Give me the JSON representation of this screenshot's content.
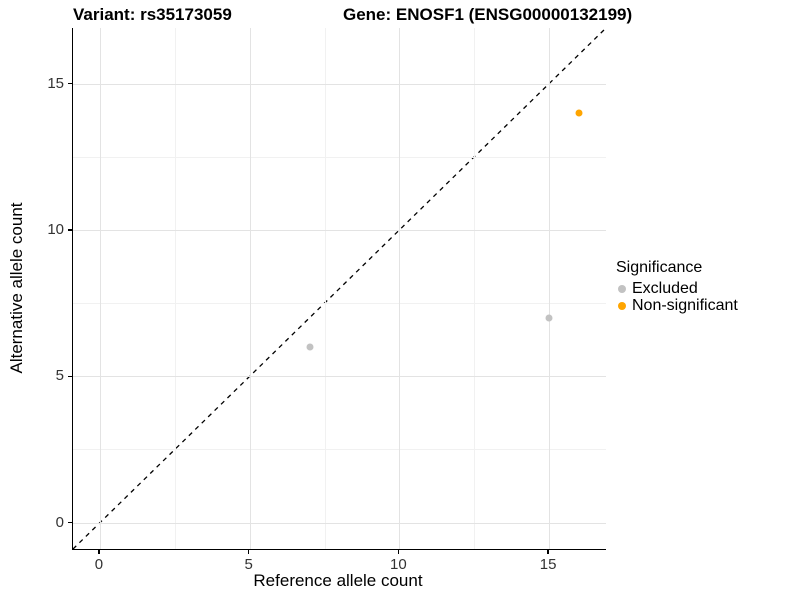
{
  "chart_data": {
    "type": "scatter",
    "titles": {
      "variant": "Variant: rs35173059",
      "gene": "Gene: ENOSF1 (ENSG00000132199)"
    },
    "xlabel": "Reference allele count",
    "ylabel": "Alternative allele count",
    "xlim": [
      -0.9,
      16.9
    ],
    "ylim": [
      -0.9,
      16.9
    ],
    "xticks": [
      0,
      5,
      10,
      15
    ],
    "yticks": [
      0,
      5,
      10,
      15
    ],
    "minor_xticks": [
      2.5,
      7.5,
      12.5
    ],
    "minor_yticks": [
      2.5,
      7.5,
      12.5
    ],
    "grid": "major+minor",
    "identity_line": {
      "style": "dashed",
      "color": "#000000",
      "from": [
        -0.9,
        -0.9
      ],
      "to": [
        16.9,
        16.9
      ]
    },
    "legend": {
      "title": "Significance",
      "position": "right"
    },
    "series": [
      {
        "name": "Excluded",
        "color": "#C2C2C2",
        "points": [
          [
            7,
            6
          ],
          [
            15,
            7
          ]
        ]
      },
      {
        "name": "Non-significant",
        "color": "#FFA500",
        "points": [
          [
            16,
            14
          ]
        ]
      }
    ],
    "colors": {
      "grid_major": "#e3e3e3",
      "grid_minor": "#f1f1f1",
      "axis_line": "#000000",
      "tick_label": "#333333"
    }
  }
}
